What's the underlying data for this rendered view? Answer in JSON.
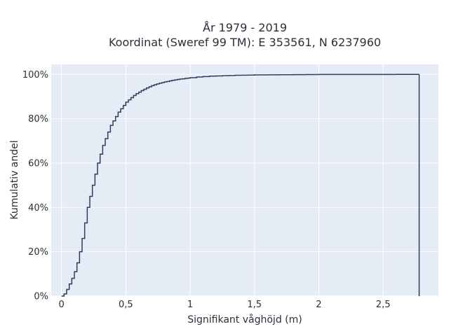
{
  "chart_data": {
    "type": "line",
    "line_shape": "step",
    "title_line1": "År 1979 - 2019",
    "title_line2": "Koordinat (Sweref 99 TM): E 353561, N 6237960",
    "xlabel": "Signifikant våghöjd (m)",
    "ylabel": "Kumulativ andel",
    "xlim": [
      -0.08,
      2.93
    ],
    "ylim": [
      0,
      1.045
    ],
    "x_ticks": [
      {
        "value": 0,
        "label": "0"
      },
      {
        "value": 0.5,
        "label": "0,5"
      },
      {
        "value": 1,
        "label": "1"
      },
      {
        "value": 1.5,
        "label": "1,5"
      },
      {
        "value": 2,
        "label": "2"
      },
      {
        "value": 2.5,
        "label": "2,5"
      }
    ],
    "y_ticks": [
      {
        "value": 0,
        "label": "0%"
      },
      {
        "value": 0.2,
        "label": "20%"
      },
      {
        "value": 0.4,
        "label": "40%"
      },
      {
        "value": 0.6,
        "label": "60%"
      },
      {
        "value": 0.8,
        "label": "80%"
      },
      {
        "value": 1.0,
        "label": "100%"
      }
    ],
    "grid": true,
    "colors": {
      "background": "#e5ecf6",
      "grid": "#ffffff",
      "line": "#2a3f5f"
    },
    "series": [
      {
        "x": [
          0.0,
          0.02,
          0.04,
          0.06,
          0.08,
          0.1,
          0.12,
          0.14,
          0.16,
          0.18,
          0.2,
          0.22,
          0.24,
          0.26,
          0.28,
          0.3,
          0.32,
          0.34,
          0.36,
          0.38,
          0.4,
          0.42,
          0.44,
          0.46,
          0.48,
          0.5,
          0.52,
          0.54,
          0.56,
          0.58,
          0.6,
          0.62,
          0.64,
          0.66,
          0.68,
          0.7,
          0.72,
          0.74,
          0.76,
          0.78,
          0.8,
          0.82,
          0.84,
          0.86,
          0.88,
          0.9,
          0.92,
          0.94,
          0.96,
          0.98,
          1.0,
          1.05,
          1.1,
          1.15,
          1.2,
          1.25,
          1.3,
          1.35,
          1.4,
          1.45,
          1.5,
          1.6,
          1.7,
          1.8,
          1.9,
          2.0,
          2.2,
          2.4,
          2.6,
          2.78
        ],
        "y": [
          0.0,
          0.01,
          0.03,
          0.055,
          0.08,
          0.11,
          0.15,
          0.2,
          0.26,
          0.33,
          0.4,
          0.45,
          0.5,
          0.55,
          0.6,
          0.64,
          0.68,
          0.71,
          0.74,
          0.77,
          0.79,
          0.81,
          0.83,
          0.845,
          0.86,
          0.875,
          0.885,
          0.895,
          0.905,
          0.913,
          0.92,
          0.927,
          0.933,
          0.939,
          0.944,
          0.949,
          0.953,
          0.957,
          0.96,
          0.963,
          0.966,
          0.968,
          0.971,
          0.973,
          0.975,
          0.977,
          0.979,
          0.98,
          0.982,
          0.983,
          0.985,
          0.988,
          0.99,
          0.992,
          0.993,
          0.994,
          0.995,
          0.996,
          0.9965,
          0.997,
          0.9975,
          0.998,
          0.9985,
          0.999,
          0.9993,
          0.9995,
          0.9997,
          0.9998,
          0.9999,
          1.0
        ]
      }
    ]
  }
}
